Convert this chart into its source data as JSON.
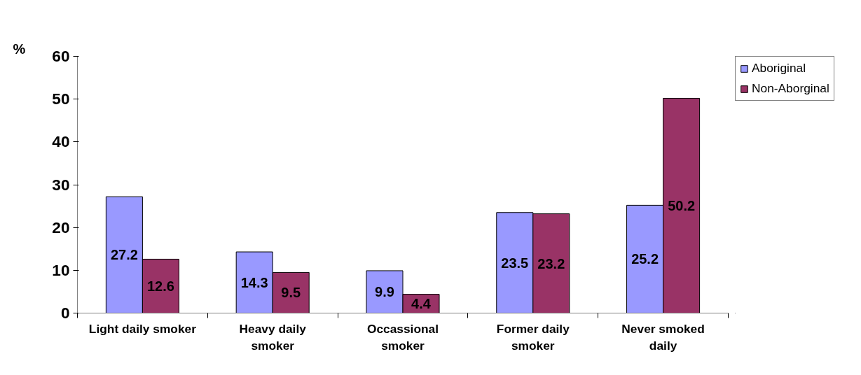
{
  "chart_data": {
    "type": "bar",
    "ylabel": "%",
    "categories": [
      "Light daily smoker",
      "Heavy daily\nsmoker",
      "Occassional\nsmoker",
      "Former daily\nsmoker",
      "Never smoked\ndaily"
    ],
    "series": [
      {
        "name": "Aboriginal",
        "color": "#9999ff",
        "values": [
          27.2,
          14.3,
          9.9,
          23.5,
          25.2
        ]
      },
      {
        "name": "Non-Aborginal",
        "color": "#993366",
        "values": [
          12.6,
          9.5,
          4.4,
          23.2,
          50.2
        ]
      }
    ],
    "ylim": [
      0,
      60
    ],
    "yticks": [
      0,
      10,
      20,
      30,
      40,
      50,
      60
    ],
    "grid": false,
    "legend": "top right",
    "data_labels": true
  }
}
